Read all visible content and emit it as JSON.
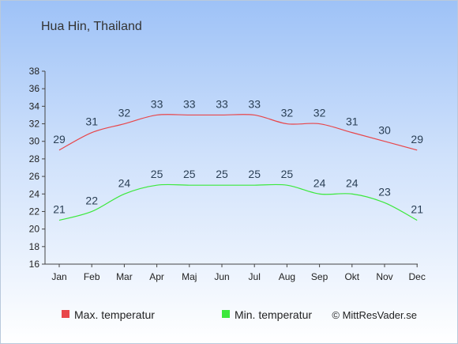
{
  "chart_data": {
    "type": "line",
    "title": "Hua Hin, Thailand",
    "categories": [
      "Jan",
      "Feb",
      "Mar",
      "Apr",
      "Maj",
      "Jun",
      "Jul",
      "Aug",
      "Sep",
      "Okt",
      "Nov",
      "Dec"
    ],
    "series": [
      {
        "name": "Max. temperatur",
        "color": "#e8464a",
        "values": [
          29,
          31,
          32,
          33,
          33,
          33,
          33,
          32,
          32,
          31,
          30,
          29
        ]
      },
      {
        "name": "Min. temperatur",
        "color": "#3ce83c",
        "values": [
          21,
          22,
          24,
          25,
          25,
          25,
          25,
          25,
          24,
          24,
          23,
          21
        ]
      }
    ],
    "yticks": [
      16,
      18,
      20,
      22,
      24,
      26,
      28,
      30,
      32,
      34,
      36,
      38
    ],
    "ylim": [
      16,
      38
    ],
    "grid": false,
    "legend": "bottom-left",
    "copyright": "© MittResVader.se"
  }
}
